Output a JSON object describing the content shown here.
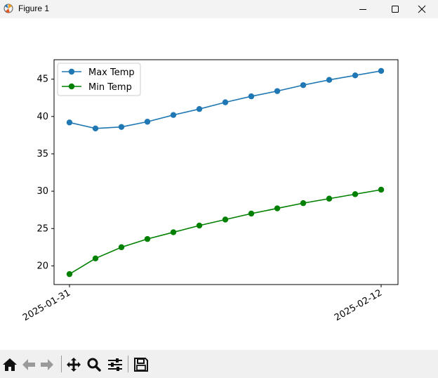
{
  "window": {
    "title": "Figure 1"
  },
  "toolbar": {
    "buttons": [
      "home-icon",
      "back-arrow-icon",
      "forward-arrow-icon",
      "pan-icon",
      "zoom-icon",
      "configure-subplots-icon",
      "save-icon"
    ]
  },
  "chart_data": {
    "type": "line",
    "x": [
      "2025-01-31",
      "2025-02-01",
      "2025-02-02",
      "2025-02-03",
      "2025-02-04",
      "2025-02-05",
      "2025-02-06",
      "2025-02-07",
      "2025-02-08",
      "2025-02-09",
      "2025-02-10",
      "2025-02-11",
      "2025-02-12"
    ],
    "xticks": [
      "2025-01-31",
      "2025-02-12"
    ],
    "series": [
      {
        "name": "Max Temp",
        "color": "#1f77b4",
        "values": [
          39.2,
          38.4,
          38.6,
          39.3,
          40.2,
          41.0,
          41.9,
          42.7,
          43.4,
          44.2,
          44.9,
          45.5,
          46.1
        ]
      },
      {
        "name": "Min Temp",
        "color": "#008000",
        "values": [
          18.9,
          21.0,
          22.5,
          23.6,
          24.5,
          25.4,
          26.2,
          27.0,
          27.7,
          28.4,
          29.0,
          29.6,
          30.2
        ]
      }
    ],
    "ylim": [
      17.5,
      47.6
    ],
    "yticks": [
      20,
      25,
      30,
      35,
      40,
      45
    ],
    "legend": "top-left",
    "grid": false,
    "marker": "circle"
  }
}
